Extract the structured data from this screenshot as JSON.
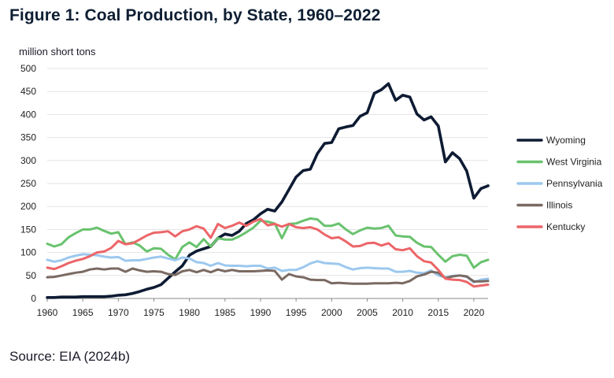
{
  "title": "Figure 1: Coal Production, by State, 1960–2022",
  "source": "Source: EIA (2024b)",
  "chart_data": {
    "type": "line",
    "ylabel": "million short tons",
    "xlim": [
      1960,
      2022
    ],
    "ylim": [
      0,
      500
    ],
    "x_ticks": [
      1960,
      1965,
      1970,
      1975,
      1980,
      1985,
      1990,
      1995,
      2000,
      2005,
      2010,
      2015,
      2020
    ],
    "y_ticks": [
      0,
      50,
      100,
      150,
      200,
      250,
      300,
      350,
      400,
      450,
      500
    ],
    "grid": true,
    "legend_position": "right",
    "x": [
      1960,
      1961,
      1962,
      1963,
      1964,
      1965,
      1966,
      1967,
      1968,
      1969,
      1970,
      1971,
      1972,
      1973,
      1974,
      1975,
      1976,
      1977,
      1978,
      1979,
      1980,
      1981,
      1982,
      1983,
      1984,
      1985,
      1986,
      1987,
      1988,
      1989,
      1990,
      1991,
      1992,
      1993,
      1994,
      1995,
      1996,
      1997,
      1998,
      1999,
      2000,
      2001,
      2002,
      2003,
      2004,
      2005,
      2006,
      2007,
      2008,
      2009,
      2010,
      2011,
      2012,
      2013,
      2014,
      2015,
      2016,
      2017,
      2018,
      2019,
      2020,
      2021,
      2022
    ],
    "series": [
      {
        "name": "Wyoming",
        "color": "#0e1b33",
        "values": [
          2,
          2,
          3,
          3,
          3,
          4,
          4,
          4,
          4,
          5,
          7,
          8,
          11,
          15,
          20,
          24,
          30,
          44,
          58,
          71,
          94,
          103,
          108,
          113,
          131,
          140,
          137,
          146,
          163,
          171,
          184,
          194,
          190,
          210,
          237,
          264,
          278,
          281,
          315,
          337,
          339,
          369,
          373,
          376,
          396,
          404,
          446,
          454,
          467,
          431,
          442,
          438,
          401,
          388,
          395,
          375,
          297,
          317,
          304,
          277,
          218,
          239,
          245
        ]
      },
      {
        "name": "West Virginia",
        "color": "#69c26e",
        "values": [
          119,
          113,
          118,
          133,
          142,
          150,
          150,
          154,
          147,
          141,
          144,
          118,
          122,
          115,
          102,
          109,
          108,
          95,
          85,
          112,
          122,
          112,
          129,
          113,
          131,
          128,
          128,
          135,
          144,
          154,
          169,
          167,
          163,
          131,
          162,
          163,
          169,
          174,
          172,
          158,
          158,
          163,
          150,
          140,
          148,
          154,
          152,
          153,
          158,
          137,
          135,
          134,
          121,
          113,
          112,
          95,
          80,
          92,
          95,
          93,
          67,
          79,
          84
        ]
      },
      {
        "name": "Pennsylvania",
        "color": "#9cc8ee",
        "values": [
          84,
          80,
          83,
          89,
          93,
          96,
          95,
          94,
          91,
          89,
          90,
          82,
          83,
          83,
          86,
          89,
          91,
          87,
          83,
          89,
          87,
          79,
          77,
          71,
          77,
          72,
          71,
          71,
          70,
          71,
          71,
          65,
          67,
          60,
          62,
          62,
          68,
          76,
          81,
          77,
          76,
          75,
          68,
          63,
          66,
          67,
          66,
          65,
          65,
          58,
          58,
          60,
          56,
          55,
          61,
          50,
          46,
          49,
          50,
          47,
          35,
          41,
          43
        ]
      },
      {
        "name": "Illinois",
        "color": "#7a6a62",
        "values": [
          46,
          47,
          50,
          53,
          56,
          58,
          63,
          65,
          63,
          65,
          65,
          58,
          65,
          61,
          58,
          59,
          58,
          53,
          51,
          59,
          62,
          57,
          62,
          57,
          63,
          59,
          62,
          59,
          59,
          59,
          60,
          61,
          60,
          41,
          53,
          48,
          46,
          41,
          40,
          40,
          33,
          34,
          33,
          32,
          32,
          32,
          33,
          33,
          33,
          34,
          33,
          38,
          48,
          52,
          58,
          56,
          44,
          48,
          50,
          48,
          37,
          37,
          38
        ]
      },
      {
        "name": "Kentucky",
        "color": "#ec6568",
        "values": [
          67,
          64,
          70,
          77,
          82,
          86,
          92,
          100,
          102,
          110,
          125,
          118,
          120,
          128,
          137,
          143,
          144,
          146,
          135,
          146,
          150,
          157,
          152,
          132,
          162,
          153,
          158,
          165,
          158,
          167,
          173,
          159,
          162,
          156,
          162,
          155,
          153,
          155,
          150,
          139,
          131,
          133,
          124,
          113,
          114,
          120,
          121,
          115,
          120,
          107,
          105,
          109,
          92,
          81,
          78,
          62,
          43,
          41,
          40,
          36,
          26,
          28,
          30
        ]
      }
    ]
  }
}
